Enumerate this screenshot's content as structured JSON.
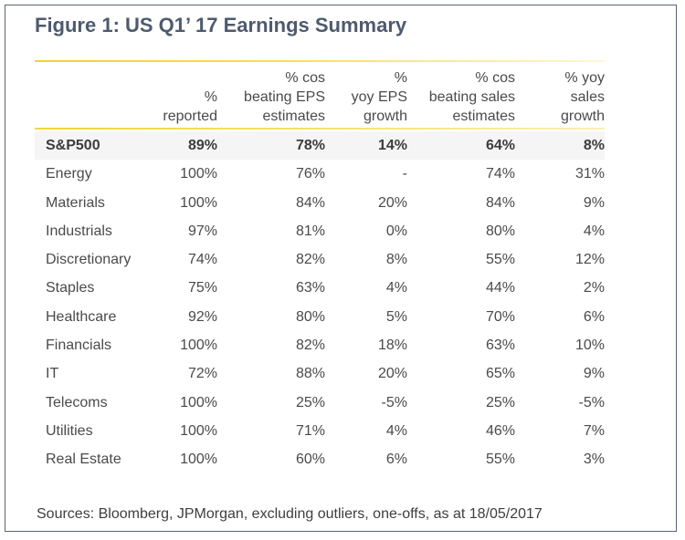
{
  "title": "Figure 1:  US Q1’ 17 Earnings Summary",
  "headers": [
    [],
    [
      "%",
      "reported"
    ],
    [
      "% cos",
      "beating EPS",
      "estimates"
    ],
    [
      "%",
      "yoy EPS",
      "growth"
    ],
    [
      "% cos",
      "beating sales",
      "estimates"
    ],
    [
      "% yoy",
      "sales",
      "growth"
    ]
  ],
  "rows": [
    [
      "S&P500",
      "89%",
      "78%",
      "14%",
      "64%",
      "8%"
    ],
    [
      "Energy",
      "100%",
      "76%",
      "-",
      "74%",
      "31%"
    ],
    [
      "Materials",
      "100%",
      "84%",
      "20%",
      "84%",
      "9%"
    ],
    [
      "Industrials",
      "97%",
      "81%",
      "0%",
      "80%",
      "4%"
    ],
    [
      "Discretionary",
      "74%",
      "82%",
      "8%",
      "55%",
      "12%"
    ],
    [
      "Staples",
      "75%",
      "63%",
      "4%",
      "44%",
      "2%"
    ],
    [
      "Healthcare",
      "92%",
      "80%",
      "5%",
      "70%",
      "6%"
    ],
    [
      "Financials",
      "100%",
      "82%",
      "18%",
      "63%",
      "10%"
    ],
    [
      "IT",
      "72%",
      "88%",
      "20%",
      "65%",
      "9%"
    ],
    [
      "Telecoms",
      "100%",
      "25%",
      "-5%",
      "25%",
      "-5%"
    ],
    [
      "Utilities",
      "100%",
      "71%",
      "4%",
      "46%",
      "7%"
    ],
    [
      "Real  Estate",
      "100%",
      "60%",
      "6%",
      "55%",
      "3%"
    ]
  ],
  "source": "Sources: Bloomberg, JPMorgan, excluding outliers, one-offs, as at 18/05/2017",
  "colors": {
    "title": "#4e5a6e",
    "accent_rule": "#f2d22e",
    "highlight_row": "#f5f5f5",
    "border": "#5a6478"
  }
}
